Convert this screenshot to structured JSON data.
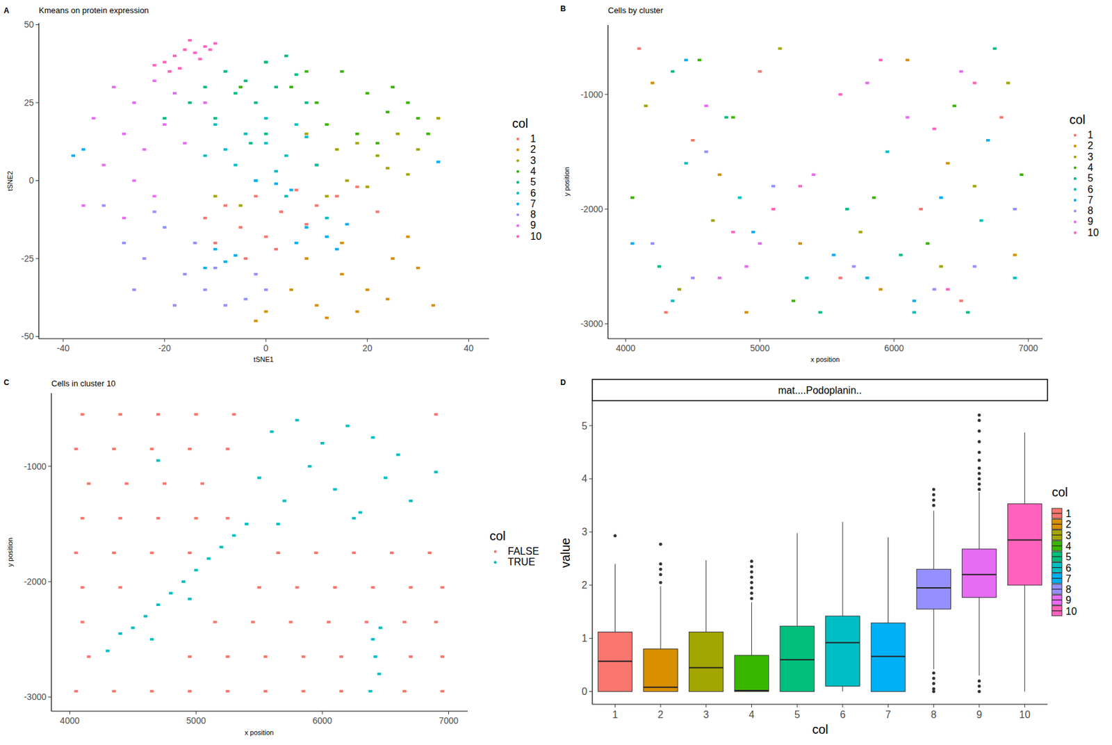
{
  "chart_data": [
    {
      "type": "scatter",
      "panel_label": "A",
      "title": "Kmeans on protein expression",
      "x_label": "tSNE1",
      "y_label": "tSNE2",
      "legend_title": "col",
      "marker": "point",
      "xlim": [
        -44.8,
        44
      ],
      "xticks": [
        -40,
        -20,
        0,
        20,
        40
      ],
      "ylim": [
        -50.7,
        50.5
      ],
      "yticks": [
        -50,
        -25,
        0,
        25,
        50
      ],
      "series": [
        {
          "name": "1",
          "color": "#F8766D",
          "x": [
            -12,
            -8,
            -5,
            -2,
            0,
            3,
            6,
            10,
            14,
            18,
            22,
            -10,
            2,
            8,
            -4
          ],
          "values": [
            -12,
            -8,
            -15,
            -5,
            -18,
            -10,
            -3,
            -8,
            -5,
            -2,
            -10,
            -20,
            -22,
            -14,
            -25
          ]
        },
        {
          "name": "2",
          "color": "#D89000",
          "x": [
            5,
            10,
            15,
            20,
            25,
            30,
            12,
            18,
            24,
            8,
            15,
            28,
            33,
            0,
            -2
          ],
          "values": [
            -35,
            -40,
            -30,
            -35,
            -25,
            -28,
            -44,
            -42,
            -38,
            -25,
            -20,
            -18,
            -40,
            -42,
            -45
          ]
        },
        {
          "name": "3",
          "color": "#A3A500",
          "x": [
            10,
            14,
            18,
            22,
            26,
            30,
            16,
            20,
            24,
            12,
            28,
            -10,
            -5,
            8,
            34
          ],
          "values": [
            5,
            10,
            12,
            8,
            15,
            10,
            0,
            -2,
            4,
            -5,
            2,
            -5,
            -8,
            15,
            20
          ]
        },
        {
          "name": "4",
          "color": "#39B600",
          "x": [
            5,
            10,
            15,
            20,
            25,
            30,
            12,
            18,
            24,
            8,
            22,
            28,
            32,
            -5,
            0
          ],
          "values": [
            30,
            25,
            35,
            28,
            30,
            20,
            18,
            15,
            22,
            35,
            12,
            25,
            15,
            30,
            38
          ]
        },
        {
          "name": "5",
          "color": "#00BF7D",
          "x": [
            -12,
            -8,
            -4,
            0,
            4,
            -6,
            -2,
            2,
            6,
            -10,
            -15,
            -20,
            8,
            0,
            -3
          ],
          "values": [
            30,
            35,
            32,
            38,
            40,
            28,
            25,
            30,
            34,
            20,
            25,
            20,
            25,
            15,
            12
          ]
        },
        {
          "name": "6",
          "color": "#00BFC4",
          "x": [
            -8,
            -4,
            0,
            4,
            8,
            -6,
            2,
            6,
            -10,
            0,
            10,
            -2,
            4,
            -12,
            12
          ],
          "values": [
            10,
            15,
            12,
            8,
            14,
            5,
            3,
            18,
            18,
            20,
            5,
            0,
            -5,
            8,
            -12
          ]
        },
        {
          "name": "7",
          "color": "#00B0F6",
          "x": [
            8,
            12,
            16,
            6,
            14,
            -10,
            -8,
            -6,
            -12,
            2,
            5,
            -2,
            -38,
            -36,
            34
          ],
          "values": [
            -15,
            -18,
            -14,
            -20,
            -22,
            -22,
            -26,
            -24,
            -28,
            -1,
            -3,
            0,
            8,
            10,
            6
          ]
        },
        {
          "name": "8",
          "color": "#9590FF",
          "x": [
            -28,
            -24,
            -20,
            -16,
            -12,
            -8,
            -4,
            0,
            -26,
            -18,
            -10,
            -2,
            -22,
            -14,
            -32
          ],
          "values": [
            -20,
            -25,
            -15,
            -30,
            -35,
            -40,
            -38,
            -35,
            -35,
            -40,
            -28,
            -30,
            -10,
            -20,
            -8
          ]
        },
        {
          "name": "9",
          "color": "#E76BF3",
          "x": [
            -30,
            -26,
            -22,
            -18,
            -34,
            -28,
            -24,
            -20,
            -32,
            -26,
            -16,
            -22,
            -36,
            -28,
            -12
          ],
          "values": [
            30,
            25,
            32,
            28,
            20,
            15,
            10,
            18,
            5,
            0,
            12,
            -5,
            -8,
            -12,
            25
          ]
        },
        {
          "name": "10",
          "color": "#FF62BC",
          "x": [
            -20,
            -18,
            -16,
            -14,
            -12,
            -10,
            -22,
            -15,
            -17,
            -13,
            -19,
            -11
          ],
          "values": [
            38,
            40,
            42,
            41,
            43,
            44,
            37,
            45,
            36,
            39,
            35,
            42
          ]
        }
      ]
    },
    {
      "type": "scatter",
      "panel_label": "B",
      "title": "Cells by cluster",
      "x_label": "x position",
      "y_label": "y position",
      "legend_title": "col",
      "marker": "point",
      "xlim": [
        3868,
        7106
      ],
      "xticks": [
        4000,
        5000,
        6000,
        7000
      ],
      "ylim": [
        -3130,
        -395
      ],
      "yticks": [
        -3000,
        -2000,
        -1000
      ],
      "series": [
        {
          "name": "1",
          "color": "#F8766D",
          "x": [
            4100,
            4500,
            5000,
            5600,
            6200,
            6800,
            4300,
            6500
          ],
          "values": [
            -600,
            -1400,
            -800,
            -2600,
            -2000,
            -1200,
            -2900,
            -2800
          ]
        },
        {
          "name": "2",
          "color": "#D89000",
          "x": [
            4200,
            4700,
            5300,
            5900,
            6400,
            6900,
            4900,
            6100
          ],
          "values": [
            -900,
            -1700,
            -2300,
            -2700,
            -1600,
            -2400,
            -2900,
            -700
          ]
        },
        {
          "name": "3",
          "color": "#A3A500",
          "x": [
            4150,
            4650,
            5150,
            5750,
            6350,
            6850,
            4400,
            6600
          ],
          "values": [
            -1100,
            -2100,
            -600,
            -2200,
            -2500,
            -900,
            -2700,
            -1800
          ]
        },
        {
          "name": "4",
          "color": "#39B600",
          "x": [
            4050,
            4550,
            5250,
            5850,
            6450,
            6950,
            4800,
            6250
          ],
          "values": [
            -1900,
            -700,
            -2800,
            -1900,
            -1100,
            -1700,
            -1200,
            -2300
          ]
        },
        {
          "name": "5",
          "color": "#00BF7D",
          "x": [
            4250,
            4750,
            5450,
            6050,
            6550,
            6750,
            4350,
            5650
          ],
          "values": [
            -2500,
            -1200,
            -2900,
            -2400,
            -2900,
            -600,
            -800,
            -2000
          ]
        },
        {
          "name": "6",
          "color": "#00BFC4",
          "x": [
            4350,
            4850,
            5350,
            5950,
            6650,
            6900,
            4450,
            6150
          ],
          "values": [
            -2800,
            -1900,
            -2600,
            -1500,
            -2100,
            -2600,
            -1600,
            -2900
          ]
        },
        {
          "name": "7",
          "color": "#00B0F6",
          "x": [
            4450,
            4950,
            5550,
            6150,
            6700,
            4050,
            5800,
            6350
          ],
          "values": [
            -700,
            -2200,
            -2400,
            -2800,
            -1400,
            -2300,
            -2600,
            -1900
          ]
        },
        {
          "name": "8",
          "color": "#9590FF",
          "x": [
            4200,
            4600,
            5100,
            5700,
            6300,
            6900,
            4500,
            6600
          ],
          "values": [
            -2300,
            -1500,
            -1800,
            -2500,
            -2700,
            -2000,
            -2600,
            -2500
          ]
        },
        {
          "name": "9",
          "color": "#E76BF3",
          "x": [
            4600,
            5000,
            5800,
            6100,
            6500,
            4900,
            4700,
            5400
          ],
          "values": [
            -1100,
            -2300,
            -900,
            -1200,
            -800,
            -2500,
            -2600,
            -1700
          ]
        },
        {
          "name": "10",
          "color": "#FF62BC",
          "x": [
            5600,
            5900,
            6300,
            6600,
            4800,
            5100,
            5300,
            6400
          ],
          "values": [
            -1000,
            -700,
            -1300,
            -900,
            -2200,
            -2000,
            -1800,
            -2700
          ]
        }
      ]
    },
    {
      "type": "scatter",
      "panel_label": "C",
      "title": "Cells in cluster 10",
      "x_label": "x position",
      "y_label": "y position",
      "legend_title": "col",
      "marker": "point",
      "xlim": [
        3854,
        7151
      ],
      "xticks": [
        4000,
        5000,
        6000,
        7000
      ],
      "ylim": [
        -3123,
        -366
      ],
      "yticks": [
        -3000,
        -2000,
        -1000
      ],
      "series": [
        {
          "name": "FALSE",
          "color": "#F8766D",
          "x": [
            4100,
            4400,
            4700,
            5000,
            5300,
            6900,
            4050,
            4350,
            4650,
            4950,
            5250,
            4150,
            4450,
            4750,
            5050,
            4100,
            4400,
            4700,
            5000,
            5250,
            4050,
            4350,
            4650,
            4950,
            5650,
            5950,
            6250,
            6550,
            6850,
            4100,
            4400,
            5500,
            5800,
            6100,
            6400,
            6700,
            6950,
            5150,
            5450,
            5750,
            6050,
            6350,
            6650,
            6900,
            4100,
            4150,
            4950,
            5250,
            5550,
            5850,
            6150,
            6700,
            6950,
            4050,
            4350,
            4650,
            4950,
            5250,
            5550,
            5850,
            6150,
            6650,
            6950
          ],
          "values": [
            -550,
            -550,
            -550,
            -550,
            -550,
            -550,
            -850,
            -850,
            -850,
            -850,
            -850,
            -1150,
            -1150,
            -1150,
            -1150,
            -1450,
            -1450,
            -1450,
            -1450,
            -1450,
            -1750,
            -1750,
            -1750,
            -1750,
            -1750,
            -1750,
            -1750,
            -1750,
            -1750,
            -2050,
            -2050,
            -2050,
            -2050,
            -2050,
            -2050,
            -2050,
            -2050,
            -2350,
            -2350,
            -2350,
            -2350,
            -2350,
            -2350,
            -2350,
            -2350,
            -2650,
            -2650,
            -2650,
            -2650,
            -2650,
            -2650,
            -2650,
            -2650,
            -2950,
            -2950,
            -2950,
            -2950,
            -2950,
            -2950,
            -2950,
            -2950,
            -2950,
            -2950
          ]
        },
        {
          "name": "TRUE",
          "color": "#00BFC4",
          "x": [
            5600,
            5800,
            6000,
            6200,
            6400,
            6600,
            5500,
            5700,
            5900,
            6100,
            6300,
            6500,
            6700,
            5400,
            5300,
            5200,
            5000,
            4900,
            4800,
            4700,
            4600,
            4500,
            4400,
            4300,
            5100,
            4950,
            4650,
            6400,
            6420,
            6450,
            6380,
            6460,
            4700,
            6900,
            5650,
            6250
          ],
          "values": [
            -700,
            -600,
            -800,
            -650,
            -750,
            -900,
            -1100,
            -1300,
            -1000,
            -1200,
            -1400,
            -1100,
            -1300,
            -1500,
            -1600,
            -1700,
            -1900,
            -2000,
            -2100,
            -2200,
            -2300,
            -2400,
            -2450,
            -2600,
            -1800,
            -2150,
            -2500,
            -2500,
            -2650,
            -2800,
            -2950,
            -2400,
            -950,
            -1050,
            -1500,
            -1450
          ]
        }
      ]
    },
    {
      "type": "box",
      "panel_label": "D",
      "strip": "mat....Podoplanin..",
      "x_label": "col",
      "y_label": "value",
      "legend_title": "col",
      "categories": [
        "1",
        "2",
        "3",
        "4",
        "5",
        "6",
        "7",
        "8",
        "9",
        "10"
      ],
      "ylim": [
        -0.24,
        5.47
      ],
      "yticks": [
        0,
        1,
        2,
        3,
        4,
        5
      ],
      "boxes": [
        {
          "name": "1",
          "color": "#F8766D",
          "whisker_low": 0,
          "q1": 0,
          "median": 0.57,
          "q3": 1.12,
          "whisker_high": 2.4,
          "outliers": [
            2.93
          ]
        },
        {
          "name": "2",
          "color": "#D89000",
          "whisker_low": 0,
          "q1": 0,
          "median": 0.08,
          "q3": 0.8,
          "whisker_high": 1.98,
          "outliers": [
            2.05,
            2.2,
            2.3,
            2.4,
            2.77
          ]
        },
        {
          "name": "3",
          "color": "#A3A500",
          "whisker_low": 0,
          "q1": 0,
          "median": 0.45,
          "q3": 1.12,
          "whisker_high": 2.47,
          "outliers": []
        },
        {
          "name": "4",
          "color": "#39B600",
          "whisker_low": 0,
          "q1": 0,
          "median": 0.02,
          "q3": 0.68,
          "whisker_high": 1.68,
          "outliers": [
            1.75,
            1.85,
            1.95,
            2.05,
            2.15,
            2.25,
            2.35,
            2.45
          ]
        },
        {
          "name": "5",
          "color": "#00BF7D",
          "whisker_low": 0,
          "q1": 0,
          "median": 0.6,
          "q3": 1.23,
          "whisker_high": 2.98,
          "outliers": []
        },
        {
          "name": "6",
          "color": "#00BFC4",
          "whisker_low": 0,
          "q1": 0.1,
          "median": 0.92,
          "q3": 1.42,
          "whisker_high": 3.19,
          "outliers": []
        },
        {
          "name": "7",
          "color": "#00B0F6",
          "whisker_low": 0,
          "q1": 0,
          "median": 0.66,
          "q3": 1.29,
          "whisker_high": 2.9,
          "outliers": []
        },
        {
          "name": "8",
          "color": "#9590FF",
          "whisker_low": 0.42,
          "q1": 1.55,
          "median": 1.95,
          "q3": 2.3,
          "whisker_high": 3.4,
          "outliers": [
            3.5,
            3.6,
            3.7,
            3.8,
            0.35,
            0.25,
            0.15,
            0.05,
            0
          ]
        },
        {
          "name": "9",
          "color": "#E76BF3",
          "whisker_low": 0.3,
          "q1": 1.77,
          "median": 2.2,
          "q3": 2.68,
          "whisker_high": 3.75,
          "outliers": [
            3.8,
            3.9,
            4.0,
            4.1,
            4.2,
            4.35,
            4.5,
            4.7,
            4.9,
            5.1,
            5.2,
            0.2,
            0.1,
            0
          ]
        },
        {
          "name": "10",
          "color": "#FF62BC",
          "whisker_low": 0,
          "q1": 2.0,
          "median": 2.85,
          "q3": 3.53,
          "whisker_high": 4.87,
          "outliers": []
        }
      ]
    }
  ]
}
